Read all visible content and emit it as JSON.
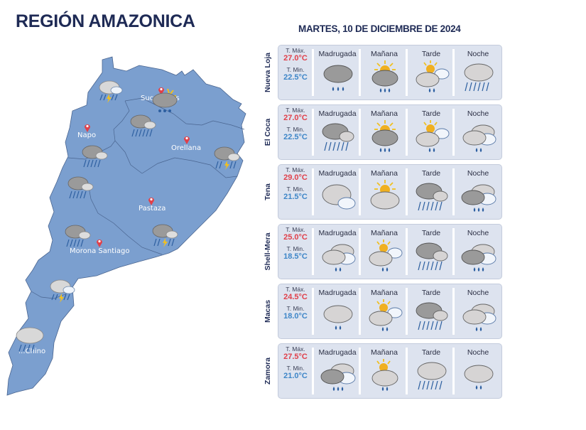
{
  "header": {
    "title": "REGIÓN AMAZONICA",
    "date": "MARTES, 10 DE DICIEMBRE DE 2024"
  },
  "colors": {
    "title": "#1e2a55",
    "map_fill": "#7b9fcf",
    "map_border": "#4a6590",
    "tmax": "#e0404a",
    "tmin": "#3e86c8",
    "card_bg": "#dde3ef",
    "pin": "#e0404a"
  },
  "map": {
    "provinces": [
      {
        "name": "Sucumbíos",
        "label_visible": "Sucu...os"
      },
      {
        "name": "Napo",
        "label_visible": "Napo"
      },
      {
        "name": "Orellana",
        "label_visible": "Orellana"
      },
      {
        "name": "Pastaza",
        "label_visible": "Pastaza"
      },
      {
        "name": "Morona Santiago",
        "label_visible": "Morona Santiago"
      },
      {
        "name": "Zamora Chinchipe",
        "label_visible": "...Chino"
      }
    ],
    "icons": [
      {
        "location": "north-west Sucumbíos",
        "icon": "thunderstorm-rain-cloud"
      },
      {
        "location": "Sucumbíos",
        "icon": "partly-sunny-rain-cloud"
      },
      {
        "location": "central Napo",
        "icon": "rain-cloud"
      },
      {
        "location": "south Napo",
        "icon": "rain-cloud"
      },
      {
        "location": "east Orellana",
        "icon": "thunderstorm-rain-cloud"
      },
      {
        "location": "north Pastaza west",
        "icon": "rain-cloud"
      },
      {
        "location": "Morona Santiago west",
        "icon": "rain-cloud"
      },
      {
        "location": "Pastaza south-east",
        "icon": "thunderstorm-rain-cloud"
      },
      {
        "location": "Morona Santiago south",
        "icon": "thunderstorm-rain-cloud"
      },
      {
        "location": "Zamora Chinchipe",
        "icon": "light-rain-cloud"
      }
    ]
  },
  "labels": {
    "tmax": "T. Máx.",
    "tmin": "T. Min.",
    "periods": [
      "Madrugada",
      "Mañana",
      "Tarde",
      "Noche"
    ]
  },
  "forecasts": [
    {
      "city": "Nueva Loja",
      "tmax": "27.0°C",
      "tmin": "22.5°C",
      "icons": [
        "dark-cloud-heavy-drizzle",
        "sun-behind-dark-cloud-drizzle",
        "sun-cloud-light-drizzle",
        "cloud-rain"
      ]
    },
    {
      "city": "El Coca",
      "tmax": "27.0°C",
      "tmin": "22.5°C",
      "icons": [
        "clouds-heavy-rain",
        "sun-behind-dark-cloud-drizzle",
        "sun-cloud-light-drizzle",
        "overcast-light-drizzle"
      ]
    },
    {
      "city": "Tena",
      "tmax": "29.0°C",
      "tmin": "21.5°C",
      "icons": [
        "overcast",
        "sun-behind-cloud",
        "clouds-heavy-rain",
        "overcast-drizzle"
      ]
    },
    {
      "city": "Shell-Mera",
      "tmax": "25.0°C",
      "tmin": "18.5°C",
      "icons": [
        "overcast-light-drizzle",
        "sun-cloud-light-drizzle",
        "clouds-heavy-rain",
        "overcast-drizzle"
      ]
    },
    {
      "city": "Macas",
      "tmax": "24.5°C",
      "tmin": "18.0°C",
      "icons": [
        "cloud-light-drizzle",
        "sun-cloud-light-drizzle",
        "clouds-heavy-rain",
        "overcast-light-drizzle"
      ]
    },
    {
      "city": "Zamora",
      "tmax": "27.5°C",
      "tmin": "21.0°C",
      "icons": [
        "overcast-drizzle",
        "sun-behind-cloud-light-drizzle",
        "cloud-rain",
        "cloud-light-drizzle"
      ]
    }
  ]
}
